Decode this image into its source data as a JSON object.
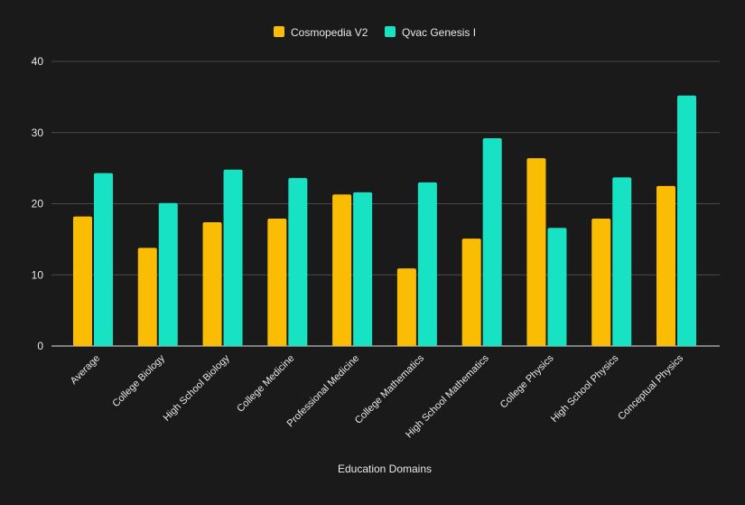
{
  "chart_data": {
    "type": "bar",
    "title": "",
    "xlabel": "Education Domains",
    "ylabel": "",
    "ylim": [
      0,
      40
    ],
    "yticks": [
      0,
      10,
      20,
      30,
      40
    ],
    "grid": true,
    "legend_position": "top-center",
    "categories": [
      "Average",
      "College Biology",
      "High School Biology",
      "College Medicine",
      "Professional Medicine",
      "College Mathematics",
      "High School Mathematics",
      "College Physics",
      "High School Physics",
      "Conceptual Physics"
    ],
    "series": [
      {
        "name": "Cosmopedia V2",
        "color": "#fbbc04",
        "values": [
          18.2,
          13.8,
          17.4,
          17.9,
          21.3,
          10.9,
          15.1,
          26.4,
          17.9,
          22.5
        ]
      },
      {
        "name": "Qvac Genesis I",
        "color": "#18e2c4",
        "values": [
          24.3,
          20.1,
          24.8,
          23.6,
          21.6,
          23.0,
          29.2,
          16.6,
          23.7,
          35.2
        ]
      }
    ]
  }
}
